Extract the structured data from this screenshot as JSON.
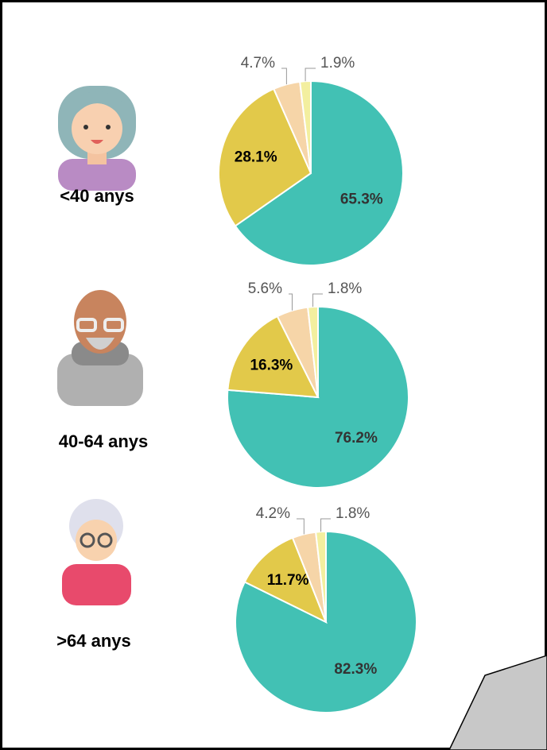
{
  "chart_data": [
    {
      "type": "pie",
      "label": "<40 anys",
      "values": [
        65.3,
        28.1,
        4.7,
        1.9
      ],
      "value_labels": [
        "65.3%",
        "28.1%",
        "4.7%",
        "1.9%"
      ],
      "colors": [
        "#42c1b4",
        "#e2c94a",
        "#f6d5a8",
        "#f3ef9f"
      ]
    },
    {
      "type": "pie",
      "label": "40-64 anys",
      "values": [
        76.2,
        16.3,
        5.6,
        1.8
      ],
      "value_labels": [
        "76.2%",
        "16.3%",
        "5.6%",
        "1.8%"
      ],
      "colors": [
        "#42c1b4",
        "#e2c94a",
        "#f6d5a8",
        "#f3ef9f"
      ]
    },
    {
      "type": "pie",
      "label": ">64 anys",
      "values": [
        82.3,
        11.7,
        4.2,
        1.8
      ],
      "value_labels": [
        "82.3%",
        "11.7%",
        "4.2%",
        "1.8%"
      ],
      "colors": [
        "#42c1b4",
        "#e2c94a",
        "#f6d5a8",
        "#f3ef9f"
      ]
    }
  ]
}
